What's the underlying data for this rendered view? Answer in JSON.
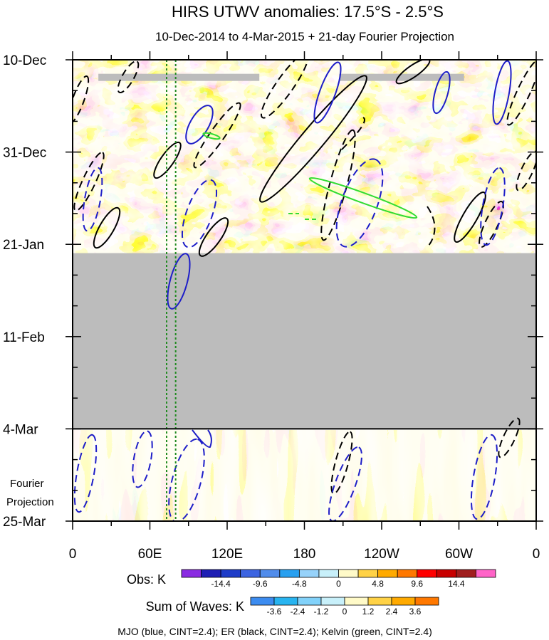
{
  "chart_data": {
    "type": "heatmap",
    "title": "HIRS UTWV anomalies: 17.5°S - 2.5°S",
    "subtitle": "10-Dec-2014 to 4-Mar-2015 + 21-day Fourier Projection",
    "x_axis": {
      "quantity": "longitude",
      "range_deg_east": [
        0,
        360
      ],
      "ticks": [
        {
          "lon": 0,
          "label": "0"
        },
        {
          "lon": 60,
          "label": "60E"
        },
        {
          "lon": 120,
          "label": "120E"
        },
        {
          "lon": 180,
          "label": "180"
        },
        {
          "lon": 240,
          "label": "120W"
        },
        {
          "lon": 300,
          "label": "60W"
        },
        {
          "lon": 360,
          "label": "0"
        }
      ]
    },
    "y_axis": {
      "quantity": "time (days since 10-Dec-2014, increasing downward)",
      "range_days": [
        0,
        105
      ],
      "ticks": [
        {
          "day": 0,
          "label": "10-Dec"
        },
        {
          "day": 21,
          "label": "31-Dec"
        },
        {
          "day": 42,
          "label": "21-Jan"
        },
        {
          "day": 63,
          "label": "11-Feb"
        },
        {
          "day": 84,
          "label": "4-Mar"
        },
        {
          "day": 105,
          "label": "25-Mar"
        }
      ],
      "fourier_section_label": [
        "Fourier",
        "Projection"
      ],
      "observed_end_day": 84
    },
    "missing_data": {
      "color": "#bcbcbc",
      "day_range": [
        44,
        84
      ],
      "strips": [
        {
          "day": 4,
          "lon_range": [
            20,
            145
          ]
        },
        {
          "day": 4,
          "lon_range": [
            207,
            304
          ]
        }
      ]
    },
    "reference_lines": {
      "color": "#228b22",
      "style": "dotted",
      "lon": [
        73,
        80
      ]
    },
    "obs_colorbar": {
      "label": "Obs: K",
      "colors": [
        "#8a2be2",
        "#1e1eb4",
        "#1e3cc8",
        "#3c64e1",
        "#508ceb",
        "#28a0f0",
        "#96d2fa",
        "#c8f0fa",
        "#fffac8",
        "#ffd246",
        "#ffaa00",
        "#ff7800",
        "#ff0000",
        "#c80000",
        "#a01e1e",
        "#ff64c8"
      ],
      "tick_labels": [
        "-14.4",
        "-9.6",
        "-4.8",
        "0",
        "4.8",
        "9.6",
        "14.4"
      ]
    },
    "waves_colorbar": {
      "label": "Sum of Waves: K",
      "colors": [
        "#3c8cf0",
        "#28b4f0",
        "#82d2fa",
        "#c8f0fa",
        "#fffac8",
        "#ffd246",
        "#ffaa00",
        "#ff7800"
      ],
      "tick_labels": [
        "-3.6",
        "-2.4",
        "-1.2",
        "0",
        "1.2",
        "2.4",
        "3.6"
      ]
    },
    "contour_legend": "MJO (blue, CINT=2.4); ER (black, CINT=2.4); Kelvin (green, CINT=2.4)",
    "series": [
      {
        "name": "MJO",
        "color": "#1e1ec8",
        "cint": 2.4
      },
      {
        "name": "ER",
        "color": "#000000",
        "cint": 2.4
      },
      {
        "name": "Kelvin",
        "color": "#32dc32",
        "cint": 2.4
      }
    ]
  }
}
